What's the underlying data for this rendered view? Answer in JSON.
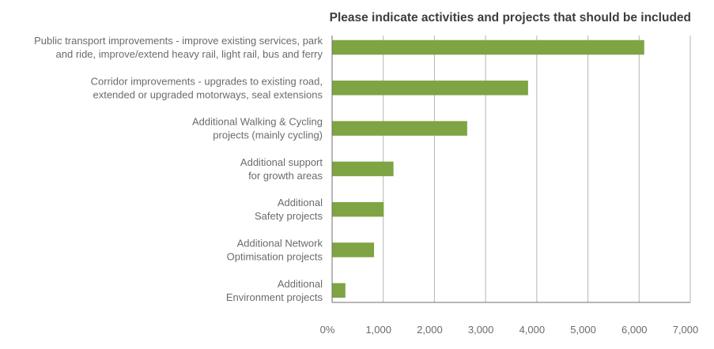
{
  "chart_data": {
    "type": "bar",
    "orientation": "horizontal",
    "title": "Please indicate activities and projects that should be included",
    "categories": [
      [
        "Public transport improvements - improve existing services, park",
        "and ride, improve/extend heavy rail, light rail, bus and ferry"
      ],
      [
        "Corridor improvements - upgrades to existing road,",
        "extended or upgraded motorways, seal extensions"
      ],
      [
        "Additional Walking & Cycling",
        "projects (mainly cycling)"
      ],
      [
        "Additional support",
        "for growth areas"
      ],
      [
        "Additional",
        "Safety projects"
      ],
      [
        "Additional Network",
        "Optimisation projects"
      ],
      [
        "Additional",
        "Environment projects"
      ]
    ],
    "values": [
      6100,
      3830,
      2640,
      1200,
      1010,
      820,
      260
    ],
    "xlim": [
      0,
      7000
    ],
    "xticks": [
      0,
      1000,
      2000,
      3000,
      4000,
      5000,
      6000,
      7000
    ],
    "xtick_labels": [
      "0%",
      "1,000",
      "2,000",
      "3,000",
      "4,000",
      "5,000",
      "6,000",
      "7,000"
    ],
    "grid": "vertical",
    "legend": "none",
    "colors": {
      "bar": "#7fa443",
      "grid": "#b5b5b5",
      "axis": "#6f6f6f",
      "label": "#6b6b6b",
      "title": "#3d3d3d"
    }
  }
}
